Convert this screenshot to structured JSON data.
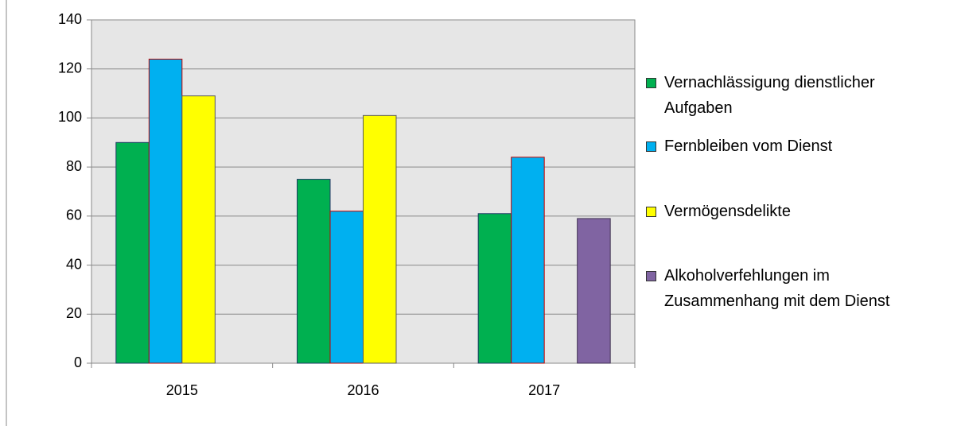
{
  "chart_data": {
    "type": "bar",
    "categories": [
      "2015",
      "2016",
      "2017"
    ],
    "series": [
      {
        "name": "Vernachlässigung dienstlicher Aufgaben",
        "color": "#00b050",
        "edgecolor": "#1f3864",
        "values": [
          90,
          75,
          61
        ]
      },
      {
        "name": "Fernbleiben vom Dienst",
        "color": "#00b0f0",
        "edgecolor": "#c00000",
        "values": [
          124,
          62,
          84
        ]
      },
      {
        "name": "Vermögensdelikte",
        "color": "#ffff00",
        "edgecolor": "#595959",
        "values": [
          109,
          101,
          null
        ]
      },
      {
        "name": "Alkoholverfehlungen im Zusammenhang mit dem Dienst",
        "color": "#8064a2",
        "edgecolor": "#3f3151",
        "values": [
          null,
          null,
          59
        ]
      }
    ],
    "ylim": [
      0,
      140
    ],
    "yticks": [
      0,
      20,
      40,
      60,
      80,
      100,
      120,
      140
    ],
    "grid": true,
    "legend": "right"
  }
}
